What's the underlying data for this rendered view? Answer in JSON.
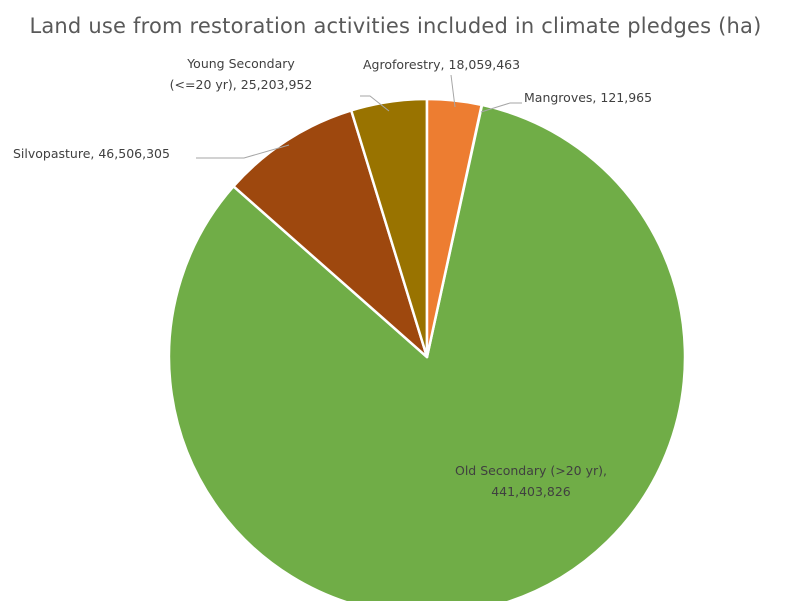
{
  "chart_data": {
    "type": "pie",
    "title": "Land use from restoration activities included in climate pledges (ha)",
    "slices": [
      {
        "name": "Mangroves",
        "value": 121965,
        "value_label": "121,965",
        "color": "#f7941d"
      },
      {
        "name": "Old Secondary (>20 yr)",
        "value": 441403826,
        "value_label": "441,403,826",
        "color": "#70ad47"
      },
      {
        "name": "Silvopasture",
        "value": 46506305,
        "value_label": "46,506,305",
        "color": "#9e480e"
      },
      {
        "name": "Young Secondary (<=20 yr)",
        "value": 25203952,
        "value_label": "25,203,952",
        "color": "#997300"
      },
      {
        "name": "Agroforestry",
        "value": 18059463,
        "value_label": "18,059,463",
        "color": "#ed7d31"
      }
    ],
    "label_texts": [
      [
        "Mangroves, 121,965"
      ],
      [
        "Old Secondary (>20 yr),",
        "441,403,826"
      ],
      [
        "Silvopasture, 46,506,305"
      ],
      [
        "Young Secondary",
        "(<=20 yr), 25,203,952"
      ],
      [
        "Agroforestry, 18,059,463"
      ]
    ],
    "legend": "none"
  }
}
